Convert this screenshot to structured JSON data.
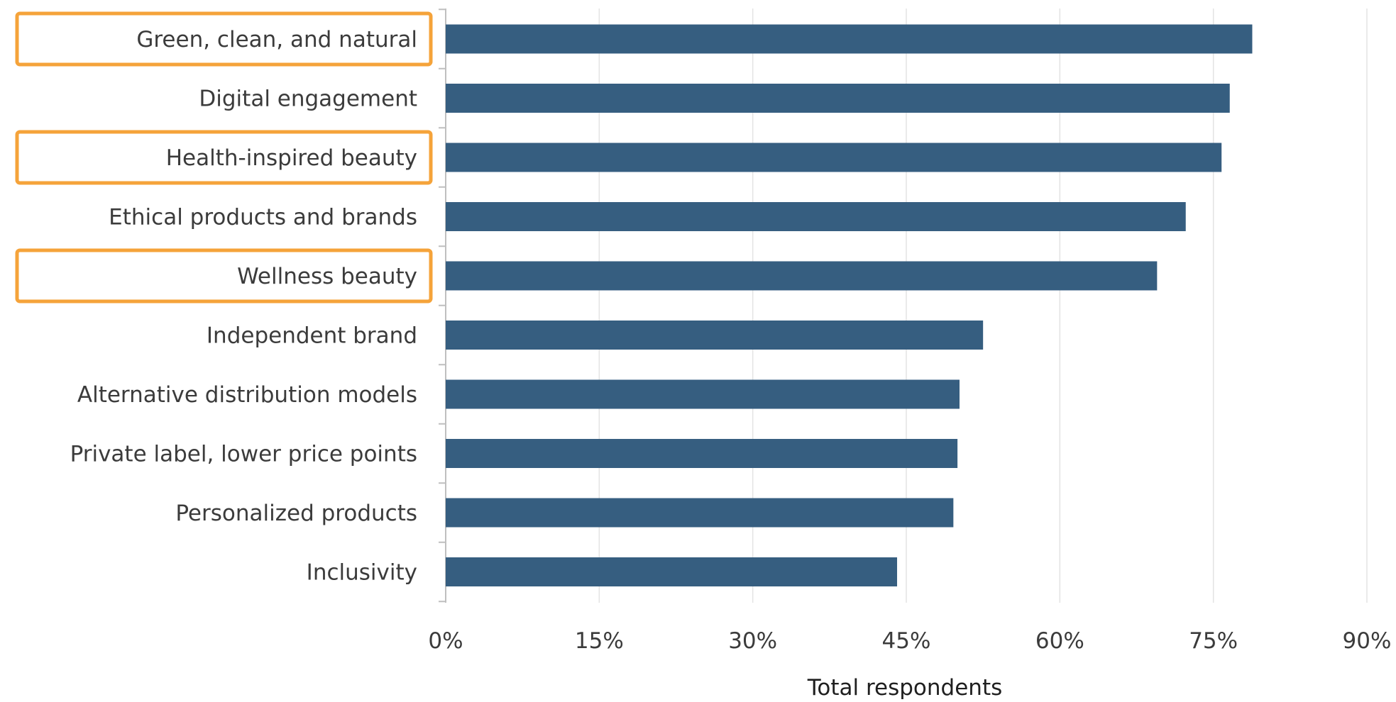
{
  "chart_data": {
    "type": "bar",
    "orientation": "horizontal",
    "categories": [
      "Green, clean, and natural",
      "Digital engagement",
      "Health-inspired beauty",
      "Ethical products and brands",
      "Wellness beauty",
      "Independent brand",
      "Alternative distribution models",
      "Private label, lower price points",
      "Personalized products",
      "Inclusivity"
    ],
    "values": [
      78.8,
      76.6,
      75.8,
      72.3,
      69.5,
      52.5,
      50.2,
      50.0,
      49.6,
      44.1
    ],
    "highlighted_categories": [
      "Green, clean, and natural",
      "Health-inspired beauty",
      "Wellness beauty"
    ],
    "xlabel": "Total respondents",
    "ylabel": "",
    "title": "",
    "xlim": [
      0,
      90
    ],
    "xticks": [
      0,
      15,
      30,
      45,
      60,
      75,
      90
    ],
    "xtick_labels": [
      "0%",
      "15%",
      "30%",
      "45%",
      "60%",
      "75%",
      "90%"
    ],
    "grid": "vertical",
    "legend": "none"
  },
  "colors": {
    "bar": "#365e80",
    "highlight_box": "#f5a33a",
    "grid": "#e3e3e3",
    "axis": "#bfbfbf",
    "text": "#3b3b3b"
  }
}
